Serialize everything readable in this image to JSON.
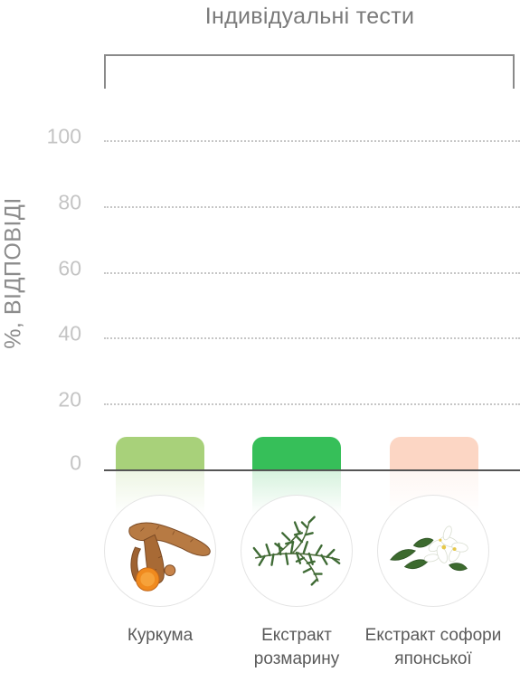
{
  "chart_data": {
    "type": "bar",
    "title": "Індивідуальні тести",
    "ylabel": "%, ВІДПОВІДІ",
    "ylim": [
      0,
      100
    ],
    "yticks": [
      "100",
      "80",
      "60",
      "40",
      "20",
      "0"
    ],
    "grid": true,
    "categories": [
      "Куркума",
      "Екстракт розмарину",
      "Екстракт софори японської"
    ],
    "values": [
      10,
      10,
      10
    ],
    "colors": [
      "#a8d17a",
      "#36bf59",
      "#fcd6c4"
    ],
    "icons": [
      "turmeric-root-icon",
      "rosemary-sprig-icon",
      "sophora-flower-icon"
    ]
  }
}
